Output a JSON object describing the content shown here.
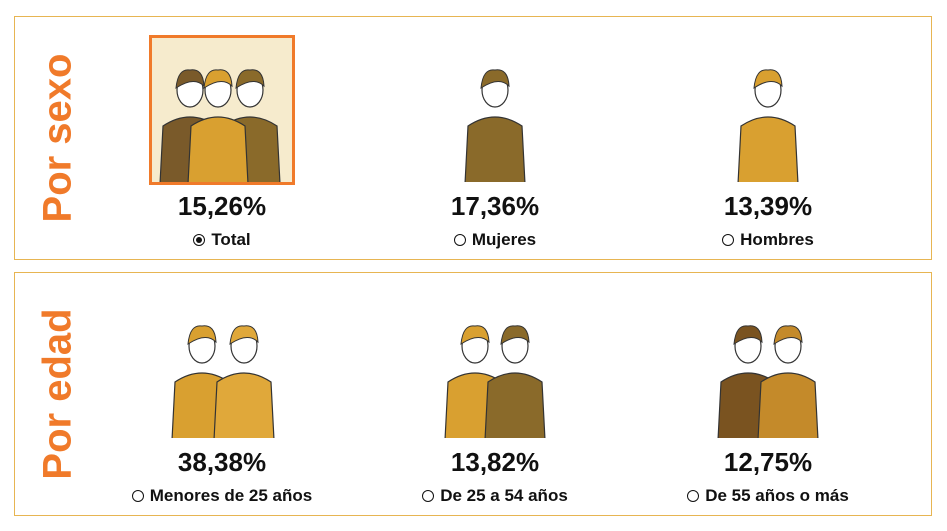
{
  "sections": [
    {
      "title": "Por sexo",
      "options": [
        {
          "value": "15,26%",
          "label": "Total",
          "selected": true
        },
        {
          "value": "17,36%",
          "label": "Mujeres",
          "selected": false
        },
        {
          "value": "13,39%",
          "label": "Hombres",
          "selected": false
        }
      ]
    },
    {
      "title": "Por edad",
      "options": [
        {
          "value": "38,38%",
          "label": "Menores de 25 años",
          "selected": false
        },
        {
          "value": "13,82%",
          "label": "De 25 a 54 años",
          "selected": false
        },
        {
          "value": "12,75%",
          "label": "De 55 años o más",
          "selected": false
        }
      ]
    }
  ]
}
